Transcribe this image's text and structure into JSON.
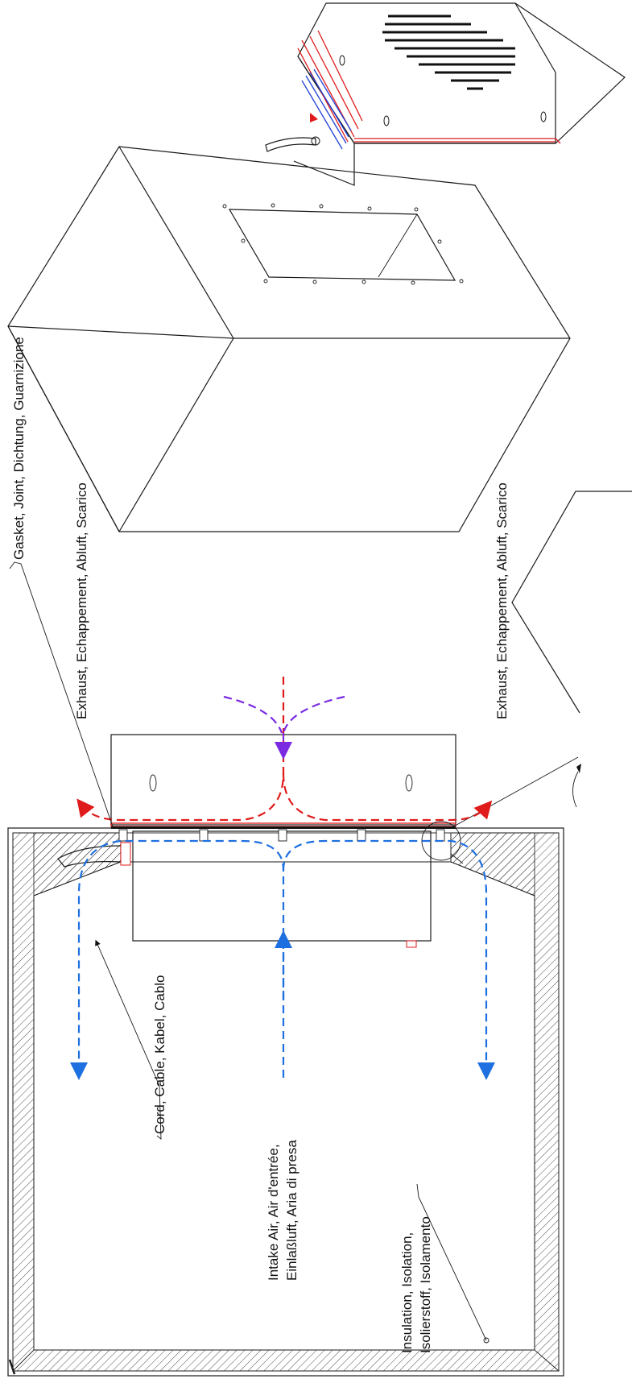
{
  "labels": {
    "gasket": "Gasket, Joint, Dichtung, Guarnizione",
    "exhaust_top": "Exhaust, Echappement, Abluft, Scarico",
    "exhaust_bottom": "Exhaust, Echappement, Abluft, Scarico",
    "cord": "Cord, Cable, Kabel, Cablo",
    "intake_line1": "Intake Air, Air d'entrée,",
    "intake_line2": "Einlaßluft, Aria di presa",
    "insulation_line1": "Insulation, Isolation,",
    "insulation_line2": "Isolierstoff, Isolamento"
  },
  "colors": {
    "exhaust_air": "#e01b1b",
    "intake_air": "#1e6fe0",
    "ambient_air": "#7a2be2",
    "line": "#1a1a1a",
    "red_fins": "#e01b1b",
    "blue_fins": "#1e3fd6"
  }
}
